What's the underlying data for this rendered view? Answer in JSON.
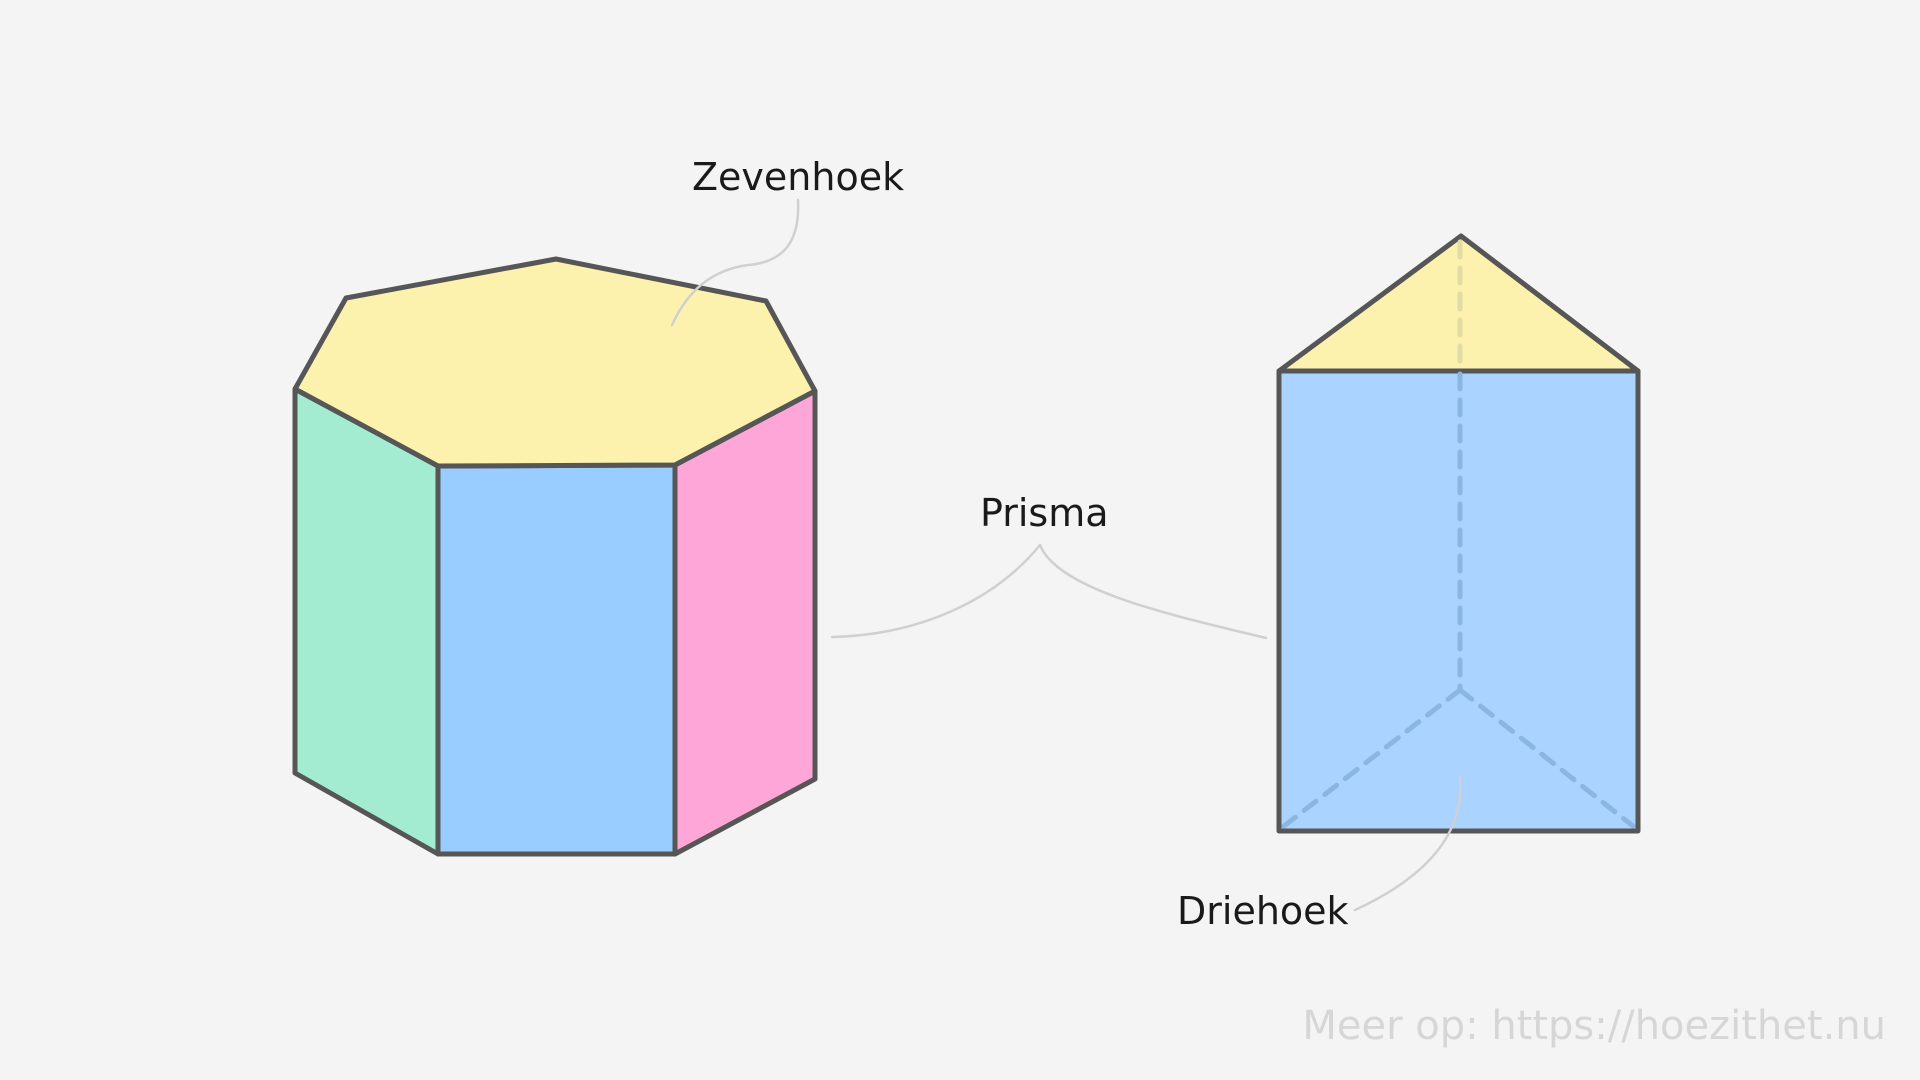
{
  "labels": {
    "heptagon": "Zevenhoek",
    "prism": "Prisma",
    "triangle": "Driehoek"
  },
  "watermark": "Meer op: https://hoezithet.nu",
  "colors": {
    "background": "#f4f4f4",
    "outline": "#565656",
    "top_face": "#fcf2ad",
    "left_face": "#a3ecd1",
    "front_face": "#99ccff",
    "right_face": "#ffa6d8",
    "triangle_prism_front": "#aad4ff",
    "leader_line": "#d0d0d0"
  }
}
